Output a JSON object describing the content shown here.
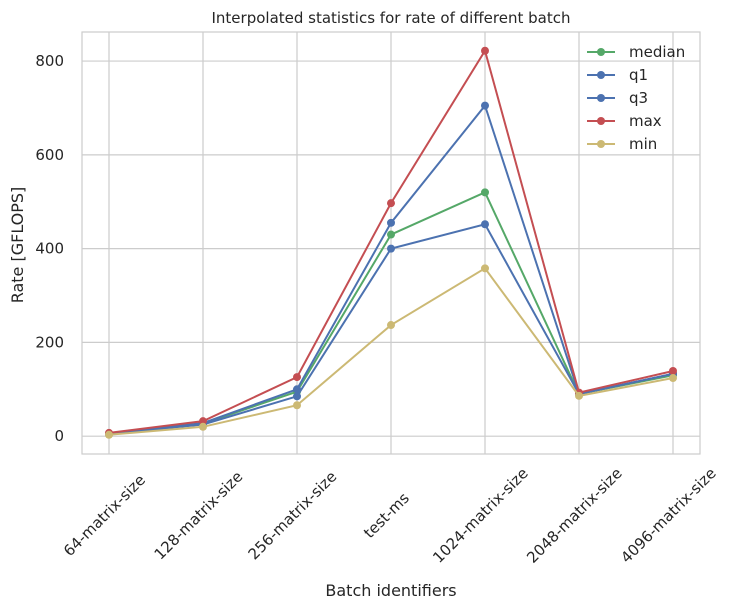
{
  "chart_data": {
    "type": "line",
    "title": "Interpolated statistics for rate of different batch",
    "xlabel": "Batch identifiers",
    "ylabel": "Rate [GFLOPS]",
    "categories": [
      "64-matrix-size",
      "128-matrix-size",
      "256-matrix-size",
      "test-ms",
      "1024-matrix-size",
      "2048-matrix-size",
      "4096-matrix-size"
    ],
    "ylim": [
      -38,
      862
    ],
    "yticks": [
      0,
      200,
      400,
      600,
      800
    ],
    "grid": true,
    "legend_position": "top-right",
    "series": [
      {
        "name": "median",
        "color": "#55a868",
        "values": [
          5,
          27,
          95,
          430,
          520,
          90,
          130
        ]
      },
      {
        "name": "q1",
        "color": "#4c72b0",
        "values": [
          5,
          25,
          85,
          400,
          452,
          90,
          133
        ]
      },
      {
        "name": "q3",
        "color": "#4c72b0",
        "values": [
          5,
          28,
          100,
          455,
          705,
          90,
          133
        ]
      },
      {
        "name": "max",
        "color": "#c44e52",
        "values": [
          7,
          32,
          126,
          497,
          822,
          93,
          139
        ]
      },
      {
        "name": "min",
        "color": "#ccb974",
        "values": [
          3,
          20,
          66,
          237,
          358,
          86,
          124
        ]
      }
    ]
  }
}
